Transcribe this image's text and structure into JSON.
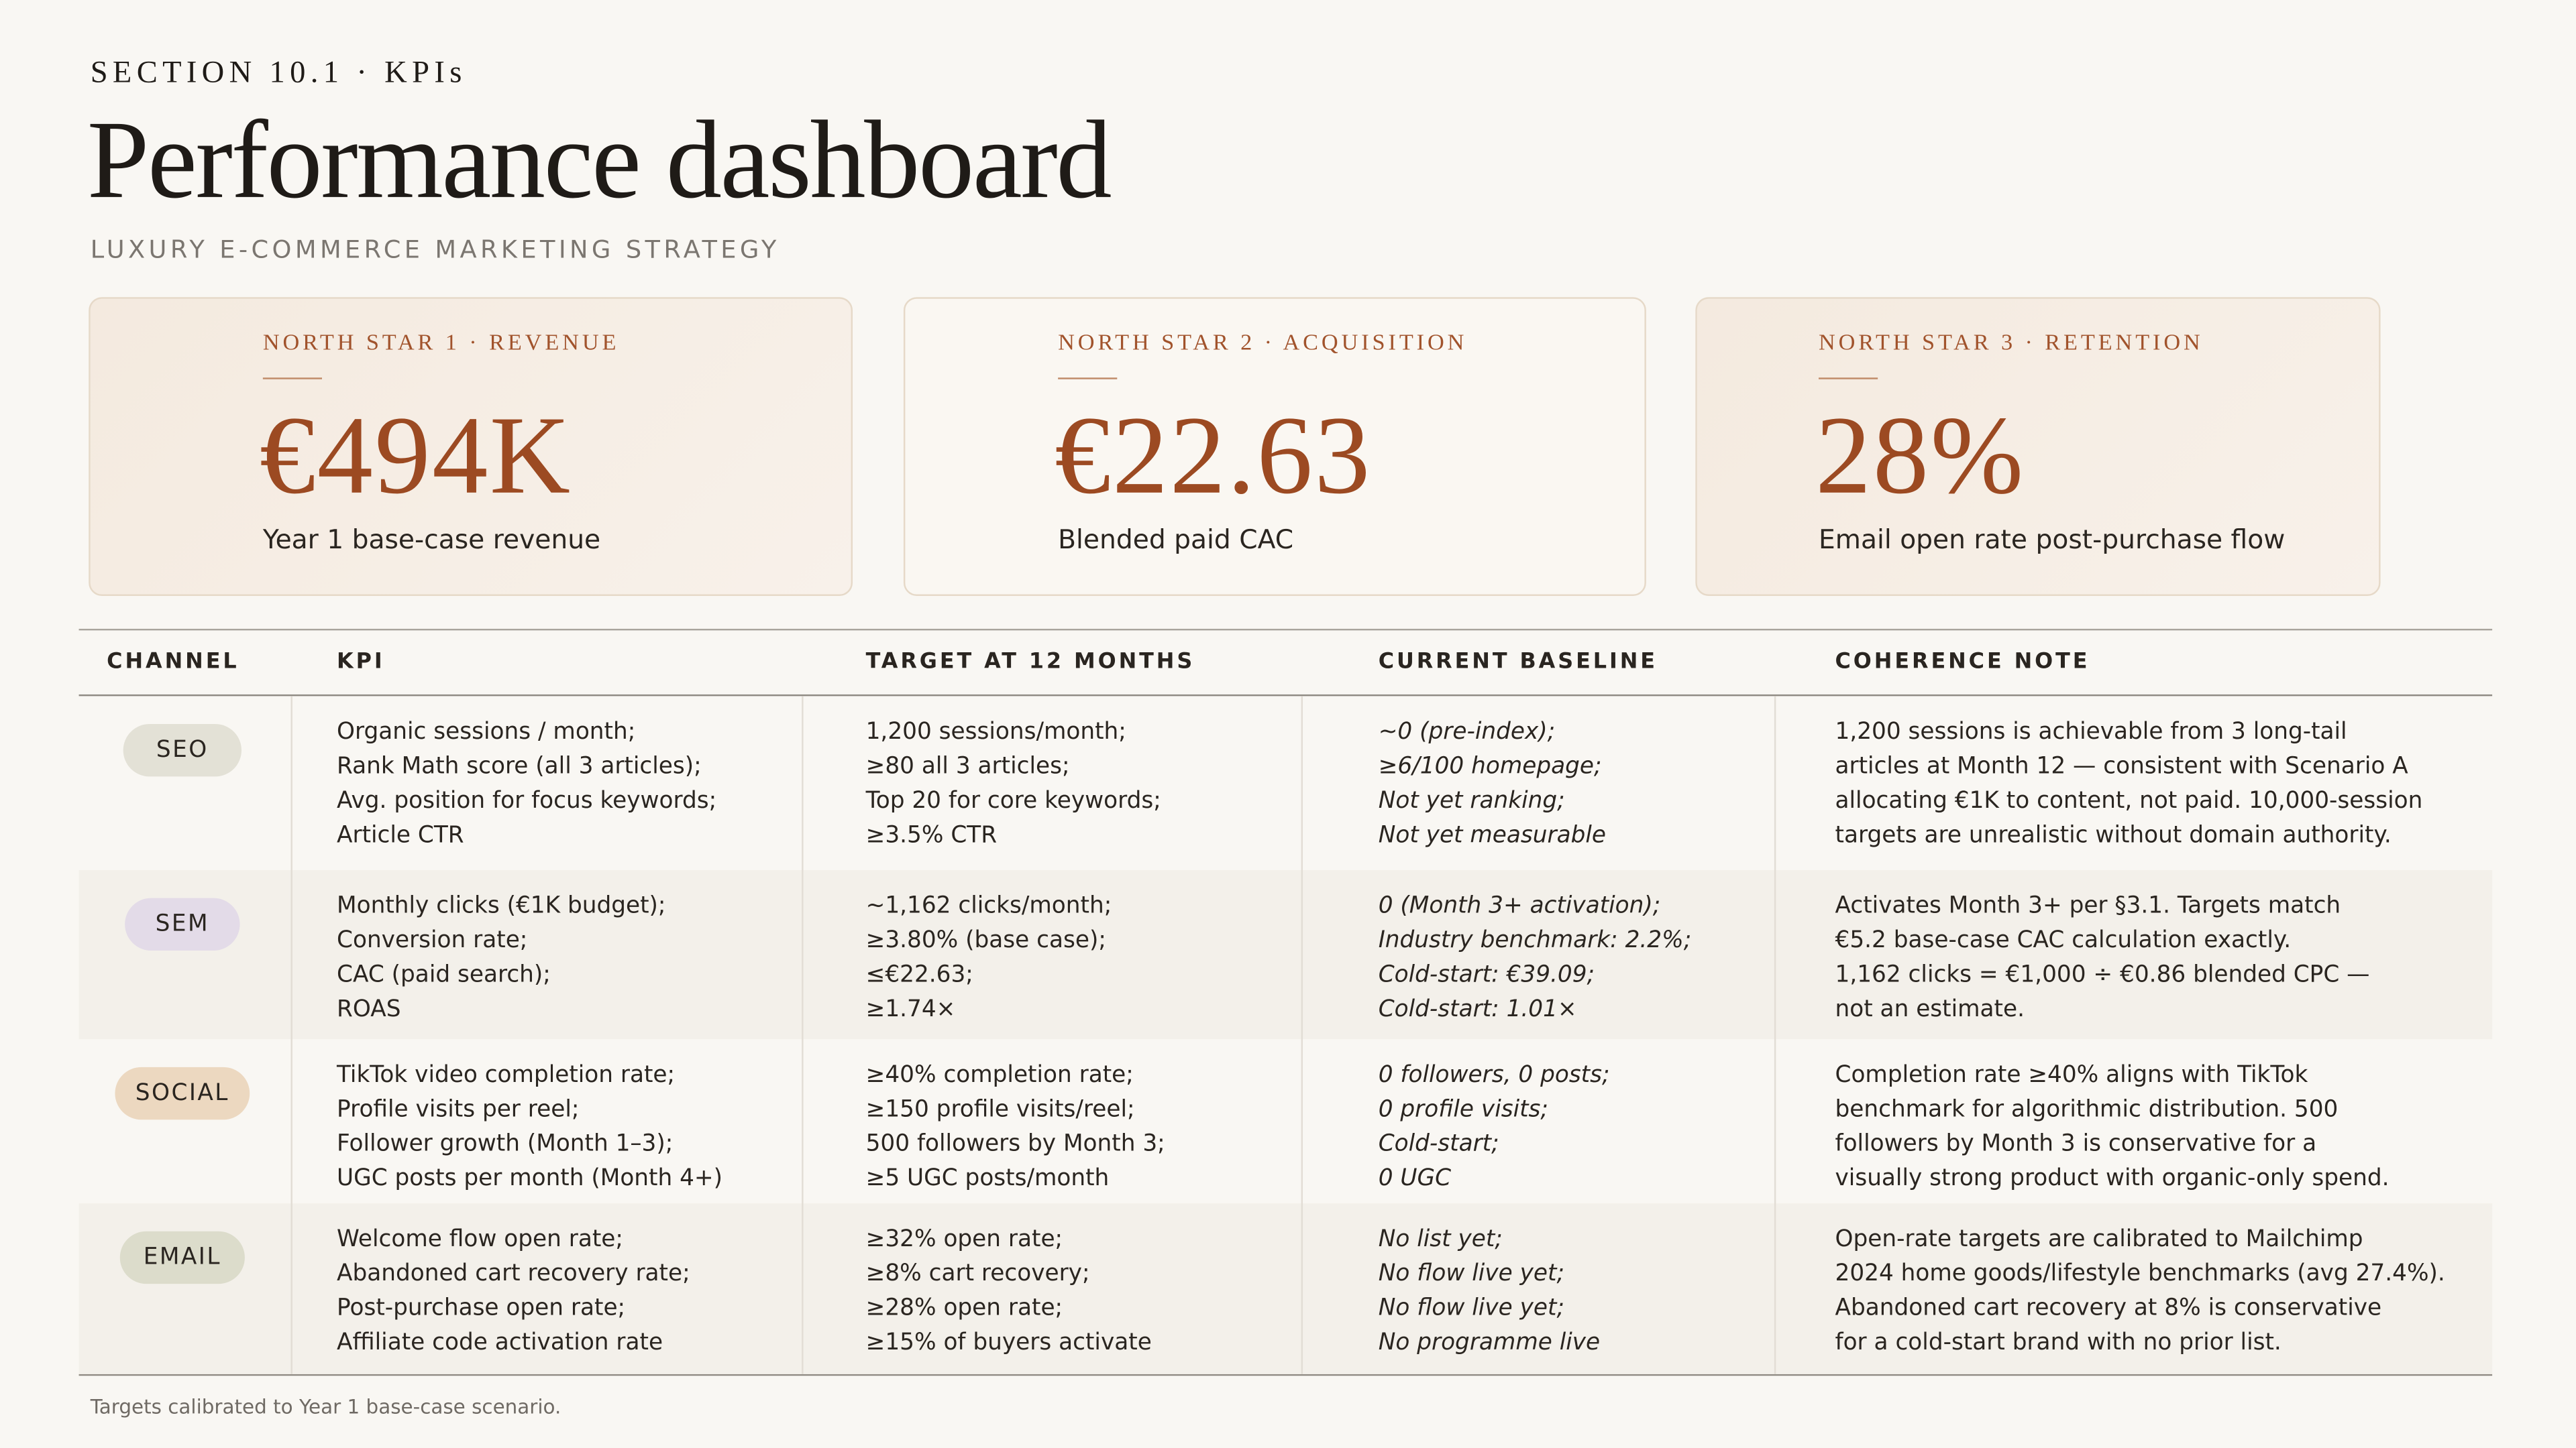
{
  "header": {
    "eyebrow": "SECTION 10.1 · KPIs",
    "title": "Performance dashboard",
    "subtitle": "LUXURY E-COMMERCE MARKETING STRATEGY"
  },
  "cards": [
    {
      "label": "NORTH STAR 1 · REVENUE",
      "value": "€494K",
      "caption": "Year 1 base-case revenue"
    },
    {
      "label": "NORTH STAR 2 · ACQUISITION",
      "value": "€22.63",
      "caption": "Blended paid CAC"
    },
    {
      "label": "NORTH STAR 3 · RETENTION",
      "value": "28%",
      "caption": "Email open rate post-purchase flow"
    }
  ],
  "table": {
    "headers": [
      "CHANNEL",
      "KPI",
      "TARGET AT 12 MONTHS",
      "CURRENT BASELINE",
      "COHERENCE NOTE"
    ],
    "rows": [
      {
        "channel": "SEO",
        "kpi": [
          "Organic sessions / month;",
          "Rank Math score (all 3 articles);",
          "Avg. position for focus keywords;",
          "Article CTR"
        ],
        "target": [
          "1,200 sessions/month;",
          "≥80 all 3 articles;",
          "Top 20 for core keywords;",
          "≥3.5% CTR"
        ],
        "baseline": [
          "~0 (pre-index);",
          "≥6/100 homepage;",
          "Not yet ranking;",
          "Not yet measurable"
        ],
        "note": [
          "1,200 sessions is achievable from 3 long-tail",
          "articles at Month 12 — consistent with Scenario A",
          "allocating €1K to content, not paid. 10,000-session",
          "targets are unrealistic without domain authority."
        ]
      },
      {
        "channel": "SEM",
        "kpi": [
          "Monthly clicks (€1K budget);",
          "Conversion rate;",
          "CAC (paid search);",
          "ROAS"
        ],
        "target": [
          "~1,162 clicks/month;",
          "≥3.80% (base case);",
          "≤€22.63;",
          "≥1.74×"
        ],
        "baseline": [
          "0 (Month 3+ activation);",
          "Industry benchmark: 2.2%;",
          "Cold-start: €39.09;",
          "Cold-start: 1.01×"
        ],
        "note": [
          "Activates Month 3+ per §3.1. Targets match",
          "€5.2 base-case CAC calculation exactly.",
          "1,162 clicks = €1,000 ÷ €0.86 blended CPC —",
          "not an estimate."
        ]
      },
      {
        "channel": "SOCIAL",
        "kpi": [
          "TikTok video completion rate;",
          "Profile visits per reel;",
          "Follower growth (Month 1–3);",
          "UGC posts per month (Month 4+)"
        ],
        "target": [
          "≥40% completion rate;",
          "≥150 profile visits/reel;",
          "500 followers by Month 3;",
          "≥5 UGC posts/month"
        ],
        "baseline": [
          "0 followers, 0 posts;",
          "0 profile visits;",
          "Cold-start;",
          "0 UGC"
        ],
        "note": [
          "Completion rate ≥40% aligns with TikTok",
          "benchmark for algorithmic distribution. 500",
          "followers by Month 3 is conservative for a",
          "visually strong product with organic-only spend."
        ]
      },
      {
        "channel": "EMAIL",
        "kpi": [
          "Welcome flow open rate;",
          "Abandoned cart recovery rate;",
          "Post-purchase open rate;",
          "Affiliate code activation rate"
        ],
        "target": [
          "≥32% open rate;",
          "≥8% cart recovery;",
          "≥28% open rate;",
          "≥15% of buyers activate"
        ],
        "baseline": [
          "No list yet;",
          "No flow live yet;",
          "No flow live yet;",
          "No programme live"
        ],
        "note": [
          "Open-rate targets are calibrated to Mailchimp",
          "2024 home goods/lifestyle benchmarks (avg 27.4%).",
          "Abandoned cart recovery at 8% is conservative",
          "for a cold-start brand with no prior list."
        ]
      }
    ]
  },
  "footer": "Targets calibrated to Year 1 base-case scenario."
}
